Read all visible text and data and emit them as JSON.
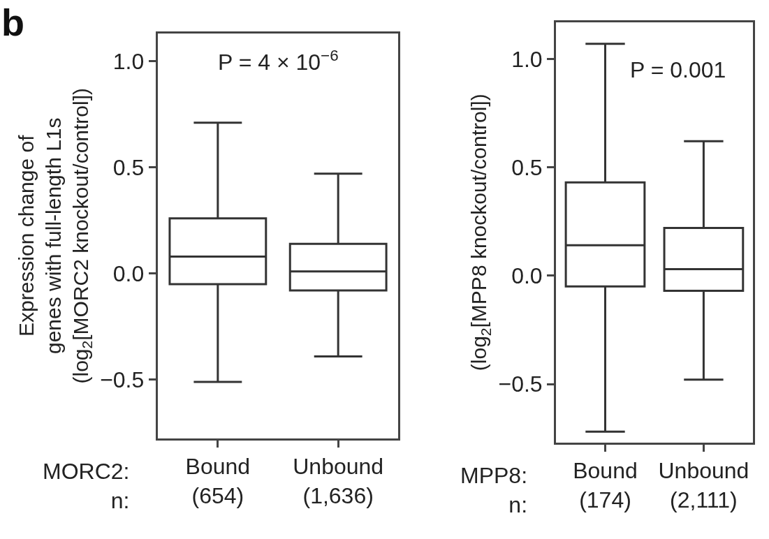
{
  "chart_data": [
    {
      "type": "box",
      "ylabel": "Expression change of\ngenes with full-length L1s\n(log$_{2}$[MORC2 knockout/control])",
      "xlabel": "MORC2:\nn:",
      "categories": [
        "Bound\n(654)",
        "Unbound\n(1,636)"
      ],
      "series": [
        {
          "color": "#333333",
          "boxes": [
            {
              "low": -0.51,
              "q1": -0.05,
              "median": 0.08,
              "q3": 0.26,
              "high": 0.71
            },
            {
              "low": -0.39,
              "q1": -0.08,
              "median": 0.01,
              "q3": 0.14,
              "high": 0.47
            }
          ]
        }
      ],
      "ylim": [
        -0.775,
        1.13
      ],
      "yticks": [
        {
          "value": -0.5,
          "label": "−0.5"
        },
        {
          "value": 0.0,
          "label": "0.0"
        },
        {
          "value": 0.5,
          "label": "0.5"
        },
        {
          "value": 1.0,
          "label": "1.0"
        }
      ],
      "annotations": [
        "b",
        "P = 4 × 10$^{−6}$"
      ]
    },
    {
      "type": "box",
      "ylabel": "(log$_{2}$[MPP8 knockout/control])",
      "xlabel": "MPP8:\nn:",
      "categories": [
        "Bound\n(174)",
        "Unbound\n(2,111)"
      ],
      "series": [
        {
          "color": "#333333",
          "boxes": [
            {
              "low": -0.72,
              "q1": -0.05,
              "median": 0.14,
              "q3": 0.43,
              "high": 1.07
            },
            {
              "low": -0.48,
              "q1": -0.07,
              "median": 0.03,
              "q3": 0.22,
              "high": 0.62
            }
          ]
        }
      ],
      "ylim": [
        -0.77,
        1.17
      ],
      "yticks": [
        {
          "value": -0.5,
          "label": "−0.5"
        },
        {
          "value": 0.0,
          "label": "0.0"
        },
        {
          "value": 0.5,
          "label": "0.5"
        },
        {
          "value": 1.0,
          "label": "1.0"
        }
      ],
      "annotations": [
        "P = 0.001"
      ]
    }
  ]
}
